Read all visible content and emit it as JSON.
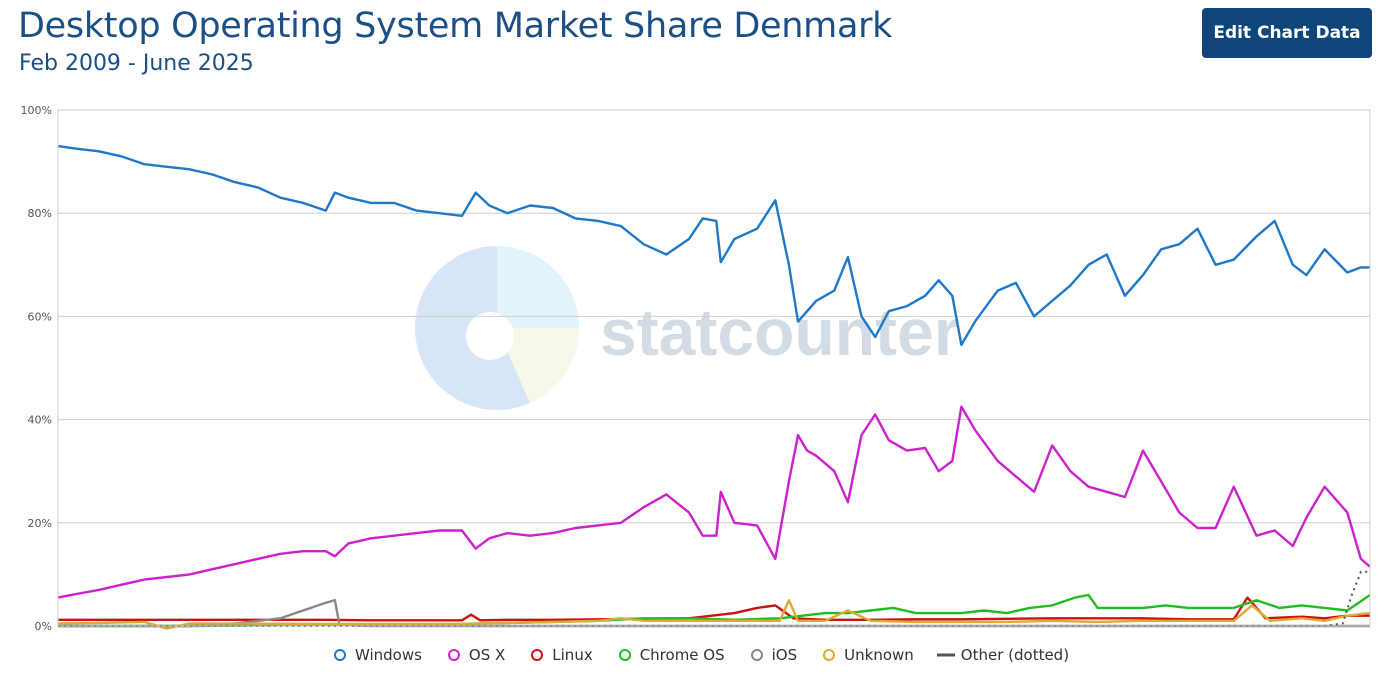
{
  "header": {
    "title": "Desktop Operating System Market Share Denmark",
    "subtitle": "Feb 2009 - June 2025",
    "edit_button_label": "Edit Chart Data"
  },
  "watermark": {
    "text": "statcounter"
  },
  "chart_data": {
    "type": "line",
    "title": "Desktop Operating System Market Share Denmark",
    "subtitle": "Feb 2009 - June 2025",
    "xlabel": "",
    "ylabel": "",
    "x_start": "2009-02",
    "x_end": "2025-06",
    "ylim": [
      0,
      100
    ],
    "yticks": [
      "0%",
      "20%",
      "40%",
      "60%",
      "80%",
      "100%"
    ],
    "grid": true,
    "legend_position": "bottom",
    "series": [
      {
        "name": "Windows",
        "color": "#1f78c8",
        "style": "solid",
        "points": [
          [
            2009.1,
            93
          ],
          [
            2009.5,
            92.5
          ],
          [
            2010.0,
            92
          ],
          [
            2010.5,
            91
          ],
          [
            2011.0,
            89.5
          ],
          [
            2011.5,
            89
          ],
          [
            2012.0,
            88.5
          ],
          [
            2012.5,
            87.5
          ],
          [
            2013.0,
            86
          ],
          [
            2013.5,
            85
          ],
          [
            2014.0,
            83
          ],
          [
            2014.5,
            82
          ],
          [
            2015.0,
            80.5
          ],
          [
            2015.2,
            84
          ],
          [
            2015.5,
            83
          ],
          [
            2016.0,
            82
          ],
          [
            2016.5,
            82
          ],
          [
            2017.0,
            80.5
          ],
          [
            2017.5,
            80
          ],
          [
            2018.0,
            79.5
          ],
          [
            2018.3,
            84
          ],
          [
            2018.6,
            81.5
          ],
          [
            2019.0,
            80
          ],
          [
            2019.5,
            81.5
          ],
          [
            2020.0,
            81
          ],
          [
            2020.5,
            79
          ],
          [
            2021.0,
            78.5
          ],
          [
            2021.5,
            77.5
          ],
          [
            2022.0,
            74
          ],
          [
            2022.5,
            72
          ],
          [
            2023.0,
            75
          ],
          [
            2023.3,
            79
          ],
          [
            2023.6,
            78.5
          ],
          [
            2023.7,
            70.5
          ],
          [
            2024.0,
            75
          ],
          [
            2024.5,
            77
          ],
          [
            2024.9,
            82.5
          ],
          [
            2025.2,
            70
          ],
          [
            2025.4,
            59
          ],
          [
            2025.6,
            61
          ],
          [
            2025.8,
            63
          ],
          [
            2026.2,
            65
          ],
          [
            2026.5,
            71.5
          ],
          [
            2026.8,
            60
          ],
          [
            2027.1,
            56
          ],
          [
            2027.4,
            61
          ],
          [
            2027.8,
            62
          ],
          [
            2028.2,
            64
          ],
          [
            2028.5,
            67
          ],
          [
            2028.8,
            64
          ],
          [
            2029.0,
            54.5
          ],
          [
            2029.3,
            59
          ],
          [
            2029.8,
            65
          ],
          [
            2030.2,
            66.5
          ],
          [
            2030.6,
            60
          ],
          [
            2031.0,
            63
          ],
          [
            2031.4,
            66
          ],
          [
            2031.8,
            70
          ],
          [
            2032.2,
            72
          ],
          [
            2032.6,
            64
          ],
          [
            2033.0,
            68
          ],
          [
            2033.4,
            73
          ],
          [
            2033.8,
            74
          ],
          [
            2034.2,
            77
          ],
          [
            2034.6,
            70
          ],
          [
            2035.0,
            71
          ],
          [
            2035.5,
            75.5
          ],
          [
            2035.9,
            78.5
          ],
          [
            2036.3,
            70
          ],
          [
            2036.6,
            68
          ],
          [
            2037.0,
            73
          ],
          [
            2037.5,
            68.5
          ],
          [
            2037.8,
            69.5
          ],
          [
            2038.0,
            69.5
          ]
        ]
      },
      {
        "name": "OS X",
        "color": "#cc22cc",
        "style": "solid",
        "points": [
          [
            2009.1,
            5.5
          ],
          [
            2009.5,
            6.2
          ],
          [
            2010.0,
            7
          ],
          [
            2010.5,
            8
          ],
          [
            2011.0,
            9
          ],
          [
            2011.5,
            9.5
          ],
          [
            2012.0,
            10
          ],
          [
            2012.5,
            11
          ],
          [
            2013.0,
            12
          ],
          [
            2013.5,
            13
          ],
          [
            2014.0,
            14
          ],
          [
            2014.5,
            14.5
          ],
          [
            2015.0,
            14.5
          ],
          [
            2015.2,
            13.5
          ],
          [
            2015.5,
            16
          ],
          [
            2016.0,
            17
          ],
          [
            2016.5,
            17.5
          ],
          [
            2017.0,
            18
          ],
          [
            2017.5,
            18.5
          ],
          [
            2018.0,
            18.5
          ],
          [
            2018.3,
            15
          ],
          [
            2018.6,
            17
          ],
          [
            2019.0,
            18
          ],
          [
            2019.5,
            17.5
          ],
          [
            2020.0,
            18
          ],
          [
            2020.5,
            19
          ],
          [
            2021.0,
            19.5
          ],
          [
            2021.5,
            20
          ],
          [
            2022.0,
            23
          ],
          [
            2022.5,
            25.5
          ],
          [
            2023.0,
            22
          ],
          [
            2023.3,
            17.5
          ],
          [
            2023.6,
            17.5
          ],
          [
            2023.7,
            26
          ],
          [
            2024.0,
            20
          ],
          [
            2024.5,
            19.5
          ],
          [
            2024.9,
            13
          ],
          [
            2025.2,
            28
          ],
          [
            2025.4,
            37
          ],
          [
            2025.6,
            34
          ],
          [
            2025.8,
            33
          ],
          [
            2026.2,
            30
          ],
          [
            2026.5,
            24
          ],
          [
            2026.8,
            37
          ],
          [
            2027.1,
            41
          ],
          [
            2027.4,
            36
          ],
          [
            2027.8,
            34
          ],
          [
            2028.2,
            34.5
          ],
          [
            2028.5,
            30
          ],
          [
            2028.8,
            32
          ],
          [
            2029.0,
            42.5
          ],
          [
            2029.3,
            38
          ],
          [
            2029.8,
            32
          ],
          [
            2030.2,
            29
          ],
          [
            2030.6,
            26
          ],
          [
            2031.0,
            35
          ],
          [
            2031.4,
            30
          ],
          [
            2031.8,
            27
          ],
          [
            2032.2,
            26
          ],
          [
            2032.6,
            25
          ],
          [
            2033.0,
            34
          ],
          [
            2033.4,
            28
          ],
          [
            2033.8,
            22
          ],
          [
            2034.2,
            19
          ],
          [
            2034.6,
            19
          ],
          [
            2035.0,
            27
          ],
          [
            2035.5,
            17.5
          ],
          [
            2035.9,
            18.5
          ],
          [
            2036.3,
            15.5
          ],
          [
            2036.6,
            21
          ],
          [
            2037.0,
            27
          ],
          [
            2037.5,
            22
          ],
          [
            2037.8,
            13
          ],
          [
            2038.0,
            11.5
          ]
        ]
      },
      {
        "name": "Linux",
        "color": "#cc1111",
        "style": "solid",
        "points": [
          [
            2009.1,
            1.2
          ],
          [
            2010.0,
            1.2
          ],
          [
            2011.0,
            1.2
          ],
          [
            2012.0,
            1.2
          ],
          [
            2013.0,
            1.2
          ],
          [
            2014.0,
            1.2
          ],
          [
            2015.0,
            1.2
          ],
          [
            2016.0,
            1.1
          ],
          [
            2017.0,
            1.1
          ],
          [
            2018.0,
            1.1
          ],
          [
            2018.2,
            2.2
          ],
          [
            2018.4,
            1.1
          ],
          [
            2019.0,
            1.2
          ],
          [
            2020.0,
            1.2
          ],
          [
            2021.0,
            1.3
          ],
          [
            2022.0,
            1.4
          ],
          [
            2023.0,
            1.5
          ],
          [
            2023.5,
            2.0
          ],
          [
            2024.0,
            2.5
          ],
          [
            2024.5,
            3.5
          ],
          [
            2024.9,
            4.0
          ],
          [
            2025.3,
            1.5
          ],
          [
            2026.0,
            1.2
          ],
          [
            2027.0,
            1.2
          ],
          [
            2028.0,
            1.3
          ],
          [
            2029.0,
            1.3
          ],
          [
            2030.0,
            1.4
          ],
          [
            2031.0,
            1.5
          ],
          [
            2032.0,
            1.5
          ],
          [
            2033.0,
            1.5
          ],
          [
            2034.0,
            1.3
          ],
          [
            2035.0,
            1.3
          ],
          [
            2035.3,
            5.5
          ],
          [
            2035.7,
            1.5
          ],
          [
            2036.5,
            1.8
          ],
          [
            2037.0,
            1.5
          ],
          [
            2037.5,
            2.0
          ],
          [
            2038.0,
            2.0
          ]
        ]
      },
      {
        "name": "Chrome OS",
        "color": "#22bb22",
        "style": "solid",
        "points": [
          [
            2009.1,
            0
          ],
          [
            2012.0,
            0
          ],
          [
            2015.0,
            0.2
          ],
          [
            2018.0,
            0.4
          ],
          [
            2020.0,
            0.8
          ],
          [
            2021.0,
            1.0
          ],
          [
            2022.0,
            1.5
          ],
          [
            2023.0,
            1.5
          ],
          [
            2024.0,
            1.2
          ],
          [
            2025.0,
            1.5
          ],
          [
            2025.5,
            2.0
          ],
          [
            2026.0,
            2.5
          ],
          [
            2026.5,
            2.5
          ],
          [
            2027.0,
            3.0
          ],
          [
            2027.5,
            3.5
          ],
          [
            2028.0,
            2.5
          ],
          [
            2028.5,
            2.5
          ],
          [
            2029.0,
            2.5
          ],
          [
            2029.5,
            3.0
          ],
          [
            2030.0,
            2.5
          ],
          [
            2030.5,
            3.5
          ],
          [
            2031.0,
            4.0
          ],
          [
            2031.5,
            5.5
          ],
          [
            2031.8,
            6.0
          ],
          [
            2032.0,
            3.5
          ],
          [
            2032.5,
            3.5
          ],
          [
            2033.0,
            3.5
          ],
          [
            2033.5,
            4.0
          ],
          [
            2034.0,
            3.5
          ],
          [
            2034.5,
            3.5
          ],
          [
            2035.0,
            3.5
          ],
          [
            2035.5,
            5.0
          ],
          [
            2036.0,
            3.5
          ],
          [
            2036.5,
            4.0
          ],
          [
            2037.0,
            3.5
          ],
          [
            2037.5,
            3.0
          ],
          [
            2038.0,
            6.0
          ]
        ]
      },
      {
        "name": "iOS",
        "color": "#888888",
        "style": "solid",
        "points": [
          [
            2009.1,
            0
          ],
          [
            2012.0,
            0
          ],
          [
            2013.0,
            0.5
          ],
          [
            2014.0,
            1.5
          ],
          [
            2014.5,
            3.0
          ],
          [
            2015.0,
            4.5
          ],
          [
            2015.2,
            5.0
          ],
          [
            2015.3,
            0.2
          ],
          [
            2016.0,
            0
          ],
          [
            2020.0,
            0
          ],
          [
            2025.0,
            0
          ],
          [
            2030.0,
            0
          ],
          [
            2035.0,
            0
          ],
          [
            2038.0,
            0
          ]
        ]
      },
      {
        "name": "Unknown",
        "color": "#ddaa33",
        "style": "solid",
        "points": [
          [
            2009.1,
            0.5
          ],
          [
            2010.0,
            0.6
          ],
          [
            2011.0,
            0.8
          ],
          [
            2011.5,
            -0.5
          ],
          [
            2012.0,
            0.5
          ],
          [
            2015.0,
            0.4
          ],
          [
            2018.0,
            0.4
          ],
          [
            2020.0,
            0.8
          ],
          [
            2021.0,
            1.0
          ],
          [
            2021.5,
            1.5
          ],
          [
            2022.0,
            1.0
          ],
          [
            2023.0,
            1.0
          ],
          [
            2024.0,
            1.0
          ],
          [
            2025.0,
            1.0
          ],
          [
            2025.2,
            5.0
          ],
          [
            2025.4,
            1.0
          ],
          [
            2026.0,
            1.0
          ],
          [
            2026.5,
            3.0
          ],
          [
            2027.0,
            1.0
          ],
          [
            2028.0,
            0.8
          ],
          [
            2029.0,
            0.8
          ],
          [
            2030.0,
            0.8
          ],
          [
            2031.0,
            1.0
          ],
          [
            2032.0,
            0.8
          ],
          [
            2033.0,
            1.0
          ],
          [
            2034.0,
            1.0
          ],
          [
            2035.0,
            1.0
          ],
          [
            2035.4,
            4.0
          ],
          [
            2035.8,
            1.0
          ],
          [
            2036.5,
            1.5
          ],
          [
            2037.0,
            1.0
          ],
          [
            2037.5,
            2.0
          ],
          [
            2038.0,
            2.5
          ]
        ]
      },
      {
        "name": "Other (dotted)",
        "color": "#555555",
        "style": "dotted",
        "points": [
          [
            2009.1,
            0
          ],
          [
            2015.0,
            0
          ],
          [
            2020.0,
            0
          ],
          [
            2025.0,
            0
          ],
          [
            2030.0,
            0
          ],
          [
            2035.0,
            0
          ],
          [
            2037.0,
            0
          ],
          [
            2037.4,
            0.5
          ],
          [
            2037.6,
            6.0
          ],
          [
            2037.8,
            10.5
          ],
          [
            2038.0,
            10.5
          ]
        ]
      }
    ]
  }
}
